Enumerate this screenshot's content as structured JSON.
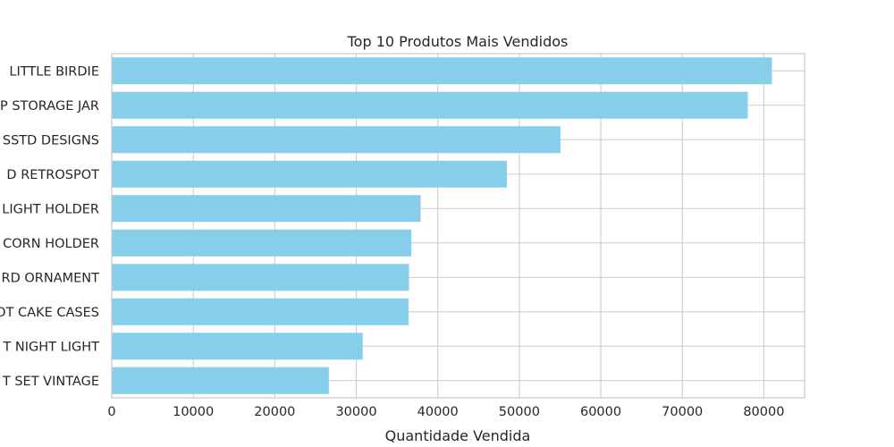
{
  "chart_data": {
    "type": "bar",
    "orientation": "horizontal",
    "title": "Top 10 Produtos Mais Vendidos",
    "xlabel": "Quantidade Vendida",
    "ylabel": "",
    "categories": [
      "LITTLE BIRDIE",
      "P STORAGE JAR",
      "SSTD DESIGNS",
      "D RETROSPOT",
      "LIGHT HOLDER",
      "CORN HOLDER",
      "RD ORNAMENT",
      "OT CAKE CASES",
      "T NIGHT LIGHT",
      "T SET VINTAGE"
    ],
    "values": [
      80995,
      78033,
      55047,
      48478,
      37895,
      36761,
      36461,
      36419,
      30788,
      26633
    ],
    "xlim": [
      0,
      85000
    ],
    "xticks": [
      0,
      10000,
      20000,
      30000,
      40000,
      50000,
      60000,
      70000,
      80000
    ],
    "xtick_labels": [
      "0",
      "10000",
      "20000",
      "30000",
      "40000",
      "50000",
      "60000",
      "70000",
      "80000"
    ],
    "grid": true,
    "bar_color": "#87CEEB",
    "grid_color": "#cccccc",
    "text_color": "#262626"
  }
}
